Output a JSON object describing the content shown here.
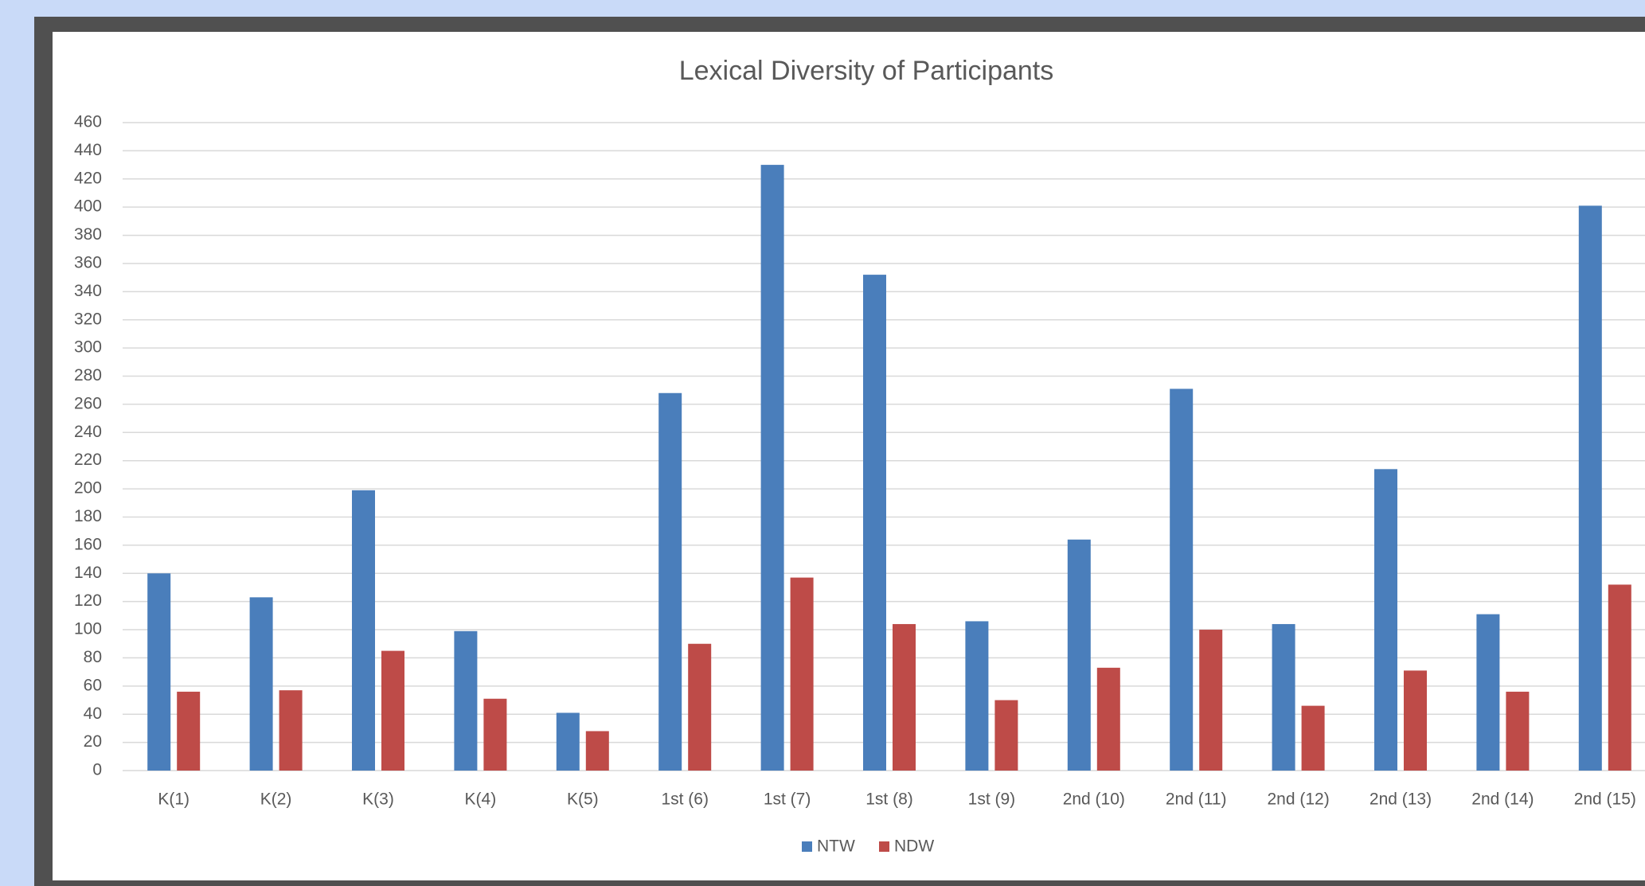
{
  "chart_data": {
    "type": "bar",
    "title": "Lexical Diversity of Participants",
    "categories": [
      "K(1)",
      "K(2)",
      "K(3)",
      "K(4)",
      "K(5)",
      "1st (6)",
      "1st (7)",
      "1st (8)",
      "1st (9)",
      "2nd (10)",
      "2nd (11)",
      "2nd (12)",
      "2nd (13)",
      "2nd (14)",
      "2nd (15)"
    ],
    "series": [
      {
        "name": "NTW",
        "color": "#4a7ebb",
        "values": [
          140,
          123,
          199,
          99,
          41,
          268,
          430,
          352,
          106,
          164,
          271,
          104,
          214,
          111,
          401
        ]
      },
      {
        "name": "NDW",
        "color": "#be4b48",
        "values": [
          56,
          57,
          85,
          51,
          28,
          90,
          137,
          104,
          50,
          73,
          100,
          46,
          71,
          56,
          132
        ]
      }
    ],
    "ylim": [
      0,
      460
    ],
    "yticks": [
      0,
      20,
      40,
      60,
      80,
      100,
      120,
      140,
      160,
      180,
      200,
      220,
      240,
      260,
      280,
      300,
      320,
      340,
      360,
      380,
      400,
      420,
      440,
      460
    ],
    "grid": true,
    "legend": "bottom"
  }
}
